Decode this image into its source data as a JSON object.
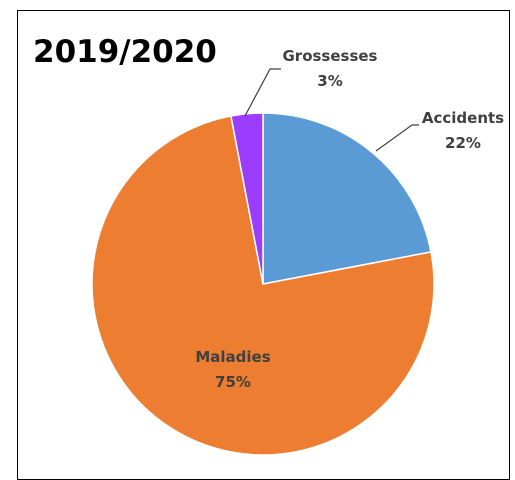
{
  "chart_data": {
    "type": "pie",
    "title": "2019/2020",
    "slices": [
      {
        "label": "Accidents",
        "value": 22,
        "value_label": "22%",
        "color": "#5B9BD5"
      },
      {
        "label": "Maladies",
        "value": 75,
        "value_label": "75%",
        "color": "#ED7D31"
      },
      {
        "label": "Grossesses",
        "value": 3,
        "value_label": "3%",
        "color": "#9B3CFF"
      }
    ],
    "start_angle_deg": 0,
    "direction": "clockwise",
    "legend": "none"
  }
}
